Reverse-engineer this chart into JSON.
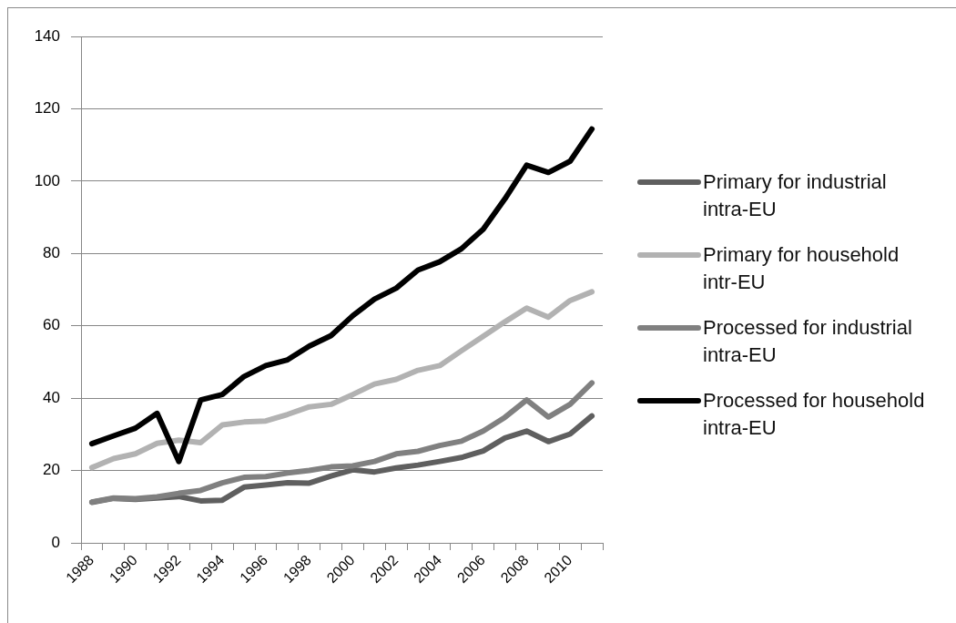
{
  "chart_data": {
    "type": "line",
    "categories": [
      "1988",
      null,
      "1990",
      null,
      "1992",
      null,
      "1994",
      null,
      "1996",
      null,
      "1998",
      null,
      "2000",
      null,
      "2002",
      null,
      "2004",
      null,
      "2006",
      null,
      "2008",
      null,
      "2010",
      null
    ],
    "series": [
      {
        "name": "Primary for industrial intra-EU",
        "color": "#5f5f5f",
        "values": [
          11.2,
          12.3,
          12.0,
          12.4,
          12.8,
          11.6,
          11.8,
          15.4,
          16.0,
          16.6,
          16.5,
          18.5,
          20.2,
          19.6,
          20.7,
          21.5,
          22.5,
          23.6,
          25.4,
          29.0,
          30.9,
          28.0,
          30.1,
          35.1
        ]
      },
      {
        "name": "Primary for household intr-EU",
        "color": "#b2b2b2",
        "values": [
          20.8,
          23.3,
          24.6,
          27.5,
          28.4,
          27.7,
          32.6,
          33.4,
          33.7,
          35.5,
          37.6,
          38.3,
          41.0,
          43.9,
          45.2,
          47.7,
          49.0,
          53.1,
          57.1,
          61.1,
          64.9,
          62.4,
          67.0,
          69.4
        ]
      },
      {
        "name": "Processed for industrial intra-EU",
        "color": "#808080",
        "values": [
          11.3,
          12.4,
          12.2,
          12.7,
          13.7,
          14.5,
          16.6,
          18.1,
          18.3,
          19.3,
          20.0,
          21.0,
          21.3,
          22.5,
          24.6,
          25.3,
          26.9,
          28.1,
          30.9,
          34.7,
          39.5,
          34.8,
          38.3,
          44.2
        ]
      },
      {
        "name": "Processed for household intra-EU",
        "color": "#000000",
        "values": [
          27.4,
          29.6,
          31.7,
          35.8,
          22.5,
          39.5,
          41.0,
          46.0,
          49.0,
          50.6,
          54.4,
          57.3,
          62.8,
          67.4,
          70.4,
          75.4,
          77.7,
          81.3,
          86.7,
          95.1,
          104.4,
          102.4,
          105.5,
          114.4
        ]
      }
    ],
    "ylim": [
      0,
      140
    ],
    "yticks": [
      0,
      20,
      40,
      60,
      80,
      100,
      120,
      140
    ],
    "grid": "y",
    "legend": "right",
    "marker": "none"
  }
}
